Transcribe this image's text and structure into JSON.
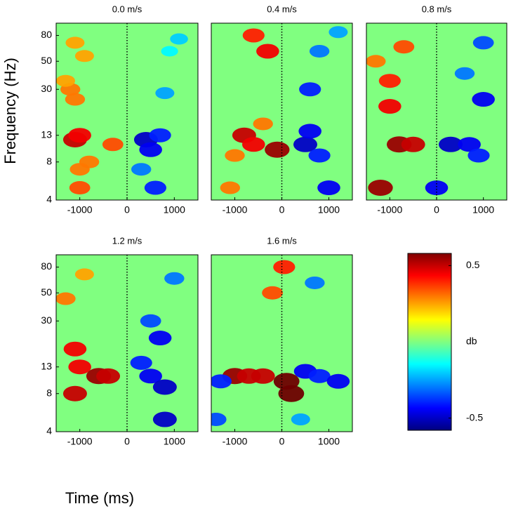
{
  "axis_labels": {
    "x": "Time (ms)",
    "y": "Frequency (Hz)"
  },
  "chart_data": [
    {
      "type": "heatmap",
      "title": "0.0 m/s",
      "xlim": [
        -1500,
        1500
      ],
      "xticks": [
        -1000,
        0,
        1000
      ],
      "ylim": [
        4,
        100
      ],
      "yscale": "log",
      "yticks": [
        4,
        8,
        13,
        30,
        50,
        80
      ],
      "x": [
        -1100,
        -1000,
        -1000,
        -1000,
        -800,
        -1200,
        -1100,
        -300,
        -900,
        -1100,
        -1300,
        400,
        500,
        700,
        600,
        300,
        800,
        1100,
        900
      ],
      "y": [
        12,
        13,
        5,
        7,
        8,
        30,
        25,
        11,
        55,
        70,
        35,
        12,
        10,
        13,
        5,
        7,
        28,
        75,
        60
      ],
      "values": [
        0.5,
        0.45,
        0.35,
        0.3,
        0.3,
        0.3,
        0.3,
        0.35,
        0.25,
        0.25,
        0.25,
        -0.5,
        -0.45,
        -0.4,
        -0.4,
        -0.3,
        -0.25,
        -0.2,
        -0.15
      ]
    },
    {
      "type": "heatmap",
      "title": "0.4 m/s",
      "xlim": [
        -1500,
        1500
      ],
      "xticks": [
        -1000,
        0,
        1000
      ],
      "ylim": [
        4,
        100
      ],
      "yscale": "log",
      "x": [
        -800,
        -600,
        -100,
        -1000,
        -1100,
        -300,
        -600,
        -400,
        500,
        600,
        800,
        1000,
        600,
        800,
        1200
      ],
      "y": [
        13,
        11,
        10,
        9,
        5,
        60,
        80,
        16,
        11,
        14,
        9,
        5,
        30,
        60,
        85
      ],
      "values": [
        0.5,
        0.45,
        0.55,
        0.3,
        0.3,
        0.45,
        0.4,
        0.3,
        -0.5,
        -0.45,
        -0.4,
        -0.45,
        -0.4,
        -0.3,
        -0.25
      ]
    },
    {
      "type": "heatmap",
      "title": "0.8 m/s",
      "xlim": [
        -1500,
        1500
      ],
      "xticks": [
        -1000,
        0,
        1000
      ],
      "ylim": [
        4,
        100
      ],
      "yscale": "log",
      "x": [
        -800,
        -500,
        -1000,
        -1200,
        -1000,
        -700,
        -1300,
        300,
        700,
        900,
        1000,
        0,
        600,
        1000
      ],
      "y": [
        11,
        11,
        22,
        5,
        35,
        65,
        50,
        11,
        11,
        9,
        25,
        5,
        40,
        70
      ],
      "values": [
        0.55,
        0.5,
        0.45,
        0.55,
        0.4,
        0.35,
        0.3,
        -0.5,
        -0.45,
        -0.4,
        -0.45,
        -0.45,
        -0.3,
        -0.35
      ]
    },
    {
      "type": "heatmap",
      "title": "1.2 m/s",
      "xlim": [
        -1500,
        1500
      ],
      "xticks": [
        -1000,
        0,
        1000
      ],
      "ylim": [
        4,
        100
      ],
      "yscale": "log",
      "yticks": [
        4,
        8,
        13,
        30,
        50,
        80
      ],
      "x": [
        -1100,
        -1000,
        -600,
        -400,
        -1100,
        -1300,
        -900,
        500,
        300,
        800,
        700,
        500,
        800,
        1000
      ],
      "y": [
        18,
        13,
        11,
        11,
        8,
        45,
        70,
        11,
        14,
        9,
        22,
        30,
        5,
        65
      ],
      "values": [
        0.45,
        0.45,
        0.55,
        0.5,
        0.5,
        0.3,
        0.25,
        -0.45,
        -0.4,
        -0.5,
        -0.45,
        -0.35,
        -0.5,
        -0.3
      ]
    },
    {
      "type": "heatmap",
      "title": "1.6 m/s",
      "xlim": [
        -1500,
        1500
      ],
      "xticks": [
        -1000,
        0,
        1000
      ],
      "ylim": [
        4,
        100
      ],
      "yscale": "log",
      "x": [
        -1000,
        -700,
        -400,
        100,
        200,
        -200,
        50,
        -1300,
        500,
        800,
        1200,
        -1400,
        700,
        400
      ],
      "y": [
        11,
        11,
        11,
        10,
        8,
        50,
        80,
        10,
        12,
        11,
        10,
        5,
        60,
        5
      ],
      "values": [
        0.55,
        0.5,
        0.5,
        0.6,
        0.6,
        0.35,
        0.4,
        -0.4,
        -0.45,
        -0.4,
        -0.45,
        -0.35,
        -0.3,
        -0.25
      ]
    },
    {
      "type": "colorbar",
      "label": "db",
      "clim": [
        -0.58,
        0.58
      ],
      "ticks": [
        0.5,
        -0.5
      ]
    }
  ]
}
